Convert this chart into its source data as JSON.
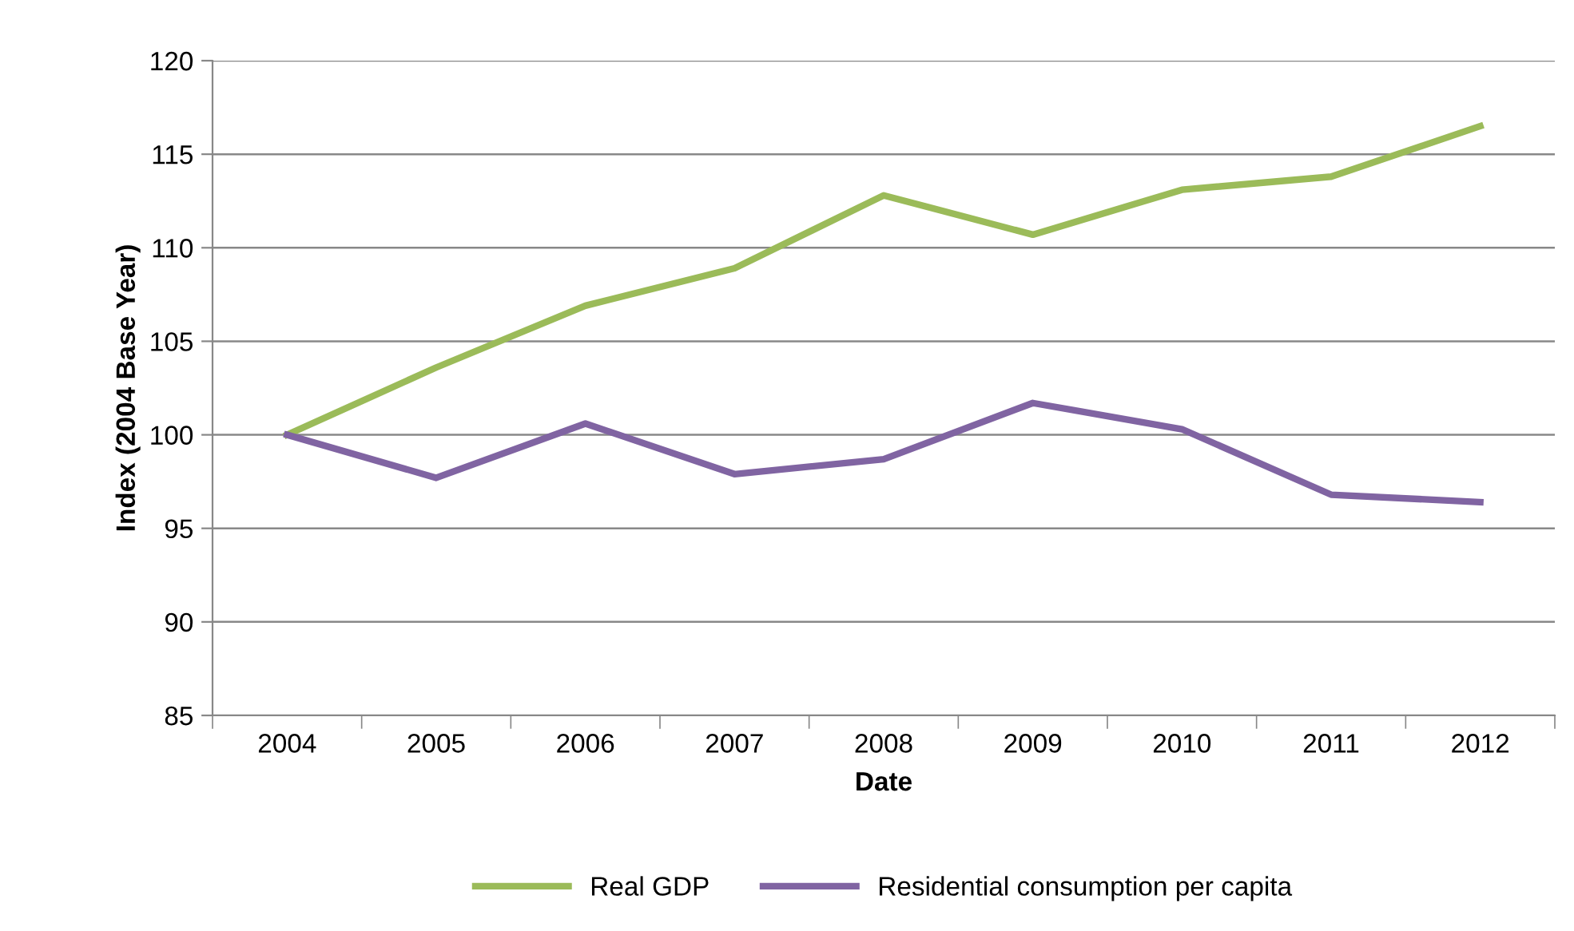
{
  "chart_data": {
    "type": "line",
    "xlabel": "Date",
    "ylabel": "Index (2004 Base Year)",
    "categories": [
      "2004",
      "2005",
      "2006",
      "2007",
      "2008",
      "2009",
      "2010",
      "2011",
      "2012"
    ],
    "series": [
      {
        "name": "Real GDP",
        "color": "#9bbb59",
        "values": [
          100,
          103.6,
          106.9,
          108.9,
          112.8,
          110.7,
          113.1,
          113.8,
          116.5
        ]
      },
      {
        "name": "Residential consumption per capita",
        "color": "#8064a2",
        "values": [
          100,
          97.7,
          100.6,
          97.9,
          98.7,
          101.7,
          100.3,
          96.8,
          96.4
        ]
      }
    ],
    "ylim": [
      85,
      120
    ],
    "yticks": [
      85,
      90,
      95,
      100,
      105,
      110,
      115,
      120
    ],
    "grid": "y",
    "legend": "bottom",
    "marker": "none",
    "line_style": "solid"
  }
}
